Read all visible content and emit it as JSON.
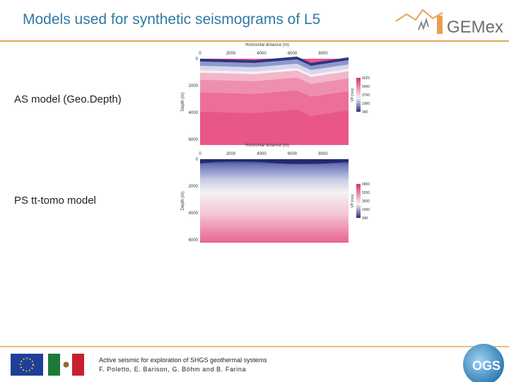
{
  "header": {
    "title": "Models used for synthetic seismograms of L5",
    "logo": "GEMex"
  },
  "sections": [
    {
      "label": "AS model (Geo.Depth)",
      "figure": {
        "x_axis_title": "Horizontal distance (m)",
        "x_ticks": [
          "0",
          "2000",
          "4000",
          "6000",
          "8000"
        ],
        "y_axis_title": "Depth (m)",
        "y_ticks": [
          "0",
          "2000",
          "4000",
          "6000"
        ],
        "colorbar_title": "VP (m/s)",
        "colorbar_ticks": [
          "6025",
          "5400",
          "3760",
          "1960",
          "340"
        ]
      }
    },
    {
      "label": "PS tt-tomo model",
      "figure": {
        "x_axis_title": "Horizontal distance (m)",
        "x_ticks": [
          "0",
          "2000",
          "4000",
          "6000",
          "8000"
        ],
        "y_axis_title": "Depth (m)",
        "y_ticks": [
          "0",
          "2000",
          "4000",
          "6000"
        ],
        "colorbar_title": "VP (m/s)",
        "colorbar_ticks": [
          "6800",
          "5200",
          "3600",
          "1900",
          "340"
        ]
      }
    }
  ],
  "footer": {
    "line1": "Active seismic for exploration of SHGS geothermal systems",
    "line2": "F. Poletto, E. Barison, G. Böhm and B. Farina",
    "logo": "OGS"
  }
}
